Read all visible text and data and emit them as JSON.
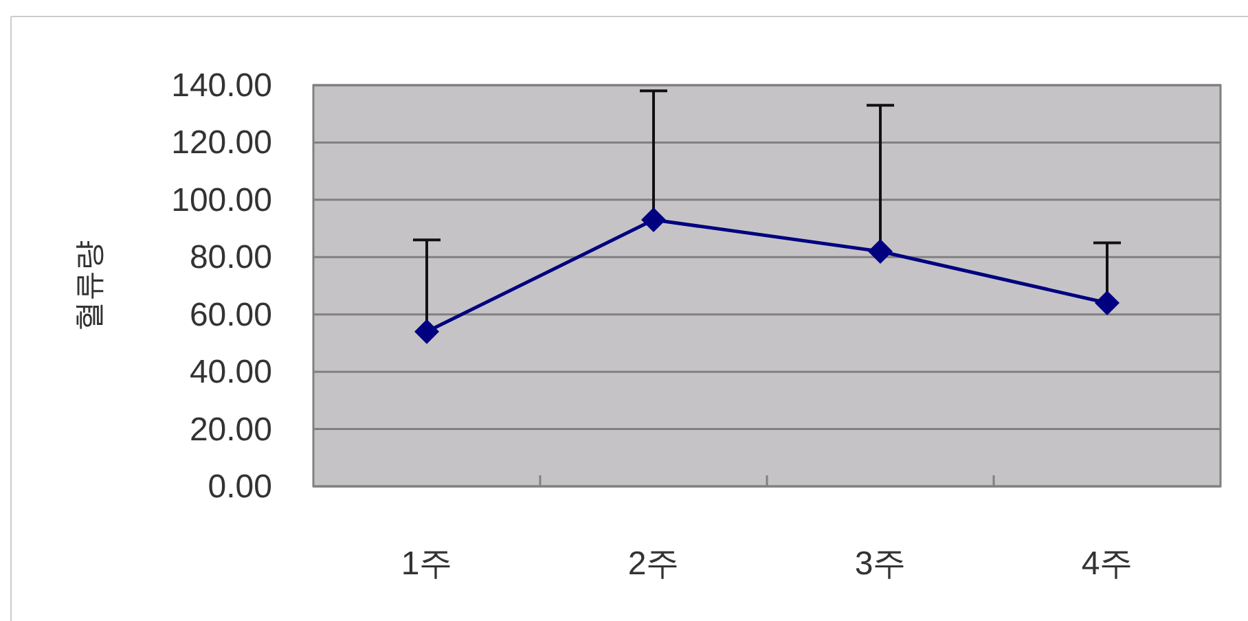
{
  "chart_data": {
    "type": "line",
    "categories": [
      "1주",
      "2주",
      "3주",
      "4주"
    ],
    "ylabel": "혈류량",
    "series": [
      {
        "color": "#000080",
        "values": [
          54,
          93,
          82,
          64
        ],
        "errors": [
          [
            54,
            86
          ],
          [
            93,
            138
          ],
          [
            82,
            133
          ],
          [
            64,
            85
          ]
        ]
      }
    ],
    "ylim": [
      0,
      140
    ],
    "yticks": [
      {
        "value": 0,
        "label": "0.00"
      },
      {
        "value": 20,
        "label": "20.00"
      },
      {
        "value": 40,
        "label": "40.00"
      },
      {
        "value": 60,
        "label": "60.00"
      },
      {
        "value": 80,
        "label": "80.00"
      },
      {
        "value": 100,
        "label": "100.00"
      },
      {
        "value": 120,
        "label": "120.00"
      },
      {
        "value": 140,
        "label": "140.00"
      }
    ],
    "grid": "y",
    "marker": "diamond",
    "line_style": "solid"
  }
}
